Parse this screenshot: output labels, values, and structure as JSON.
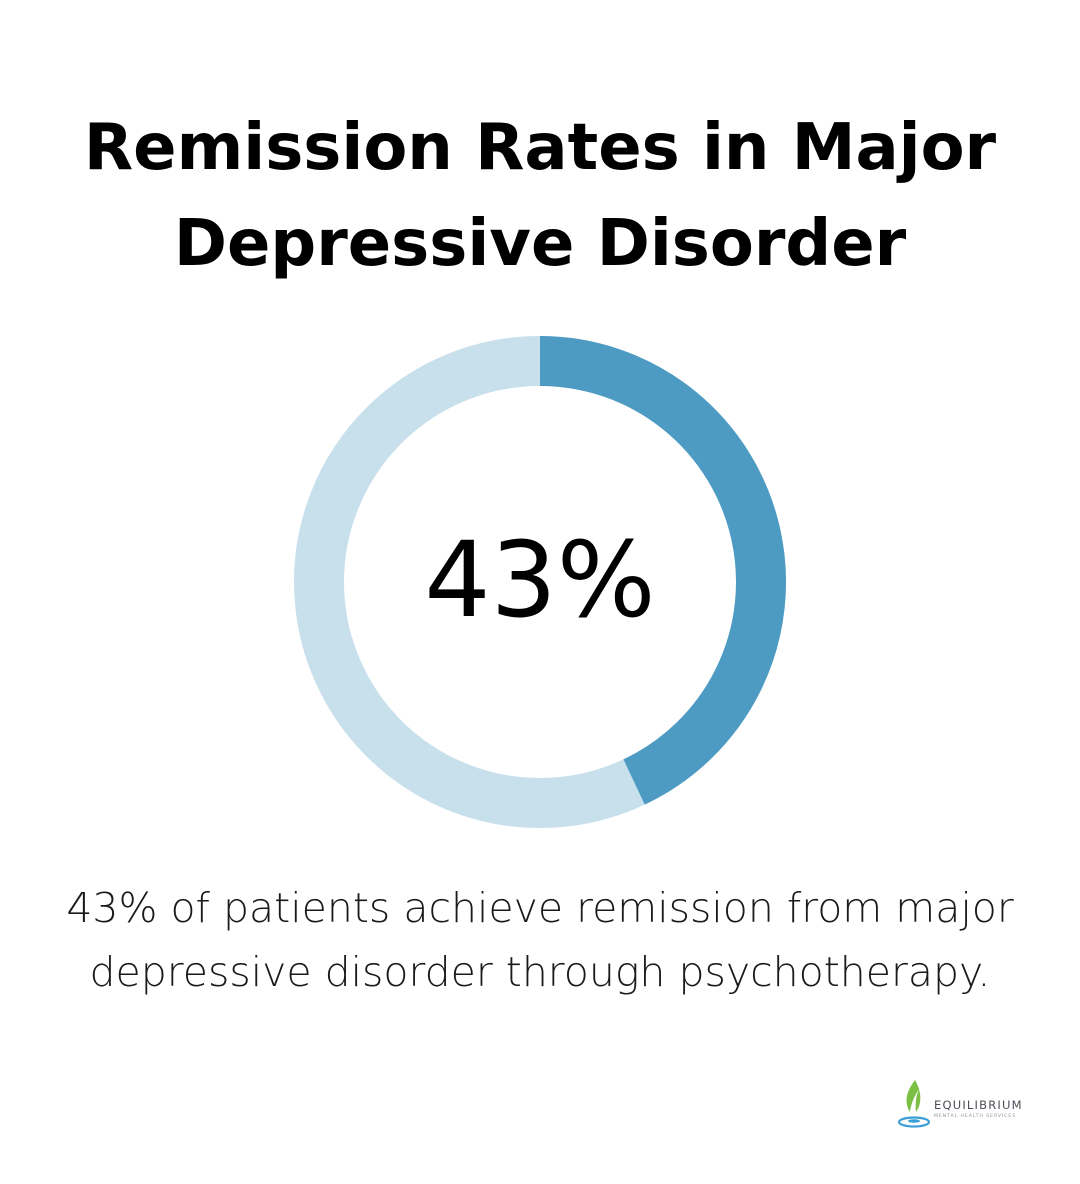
{
  "title": "Remission Rates in Major Depressive Disorder",
  "caption": "43% of patients achieve remission from major depressive disorder through psychotherapy.",
  "logo": {
    "name": "EQUILIBRIUM",
    "subtitle": "MENTAL HEALTH SERVICES"
  },
  "colors": {
    "filled": "#4d9bc3",
    "track": "#c8e0ec",
    "logo_leaf": "#7bc043",
    "logo_water": "#3a9fd6"
  },
  "chart_data": {
    "type": "pie",
    "variant": "donut",
    "center_label": "43%",
    "values": [
      43,
      57
    ],
    "unit": "%"
  }
}
